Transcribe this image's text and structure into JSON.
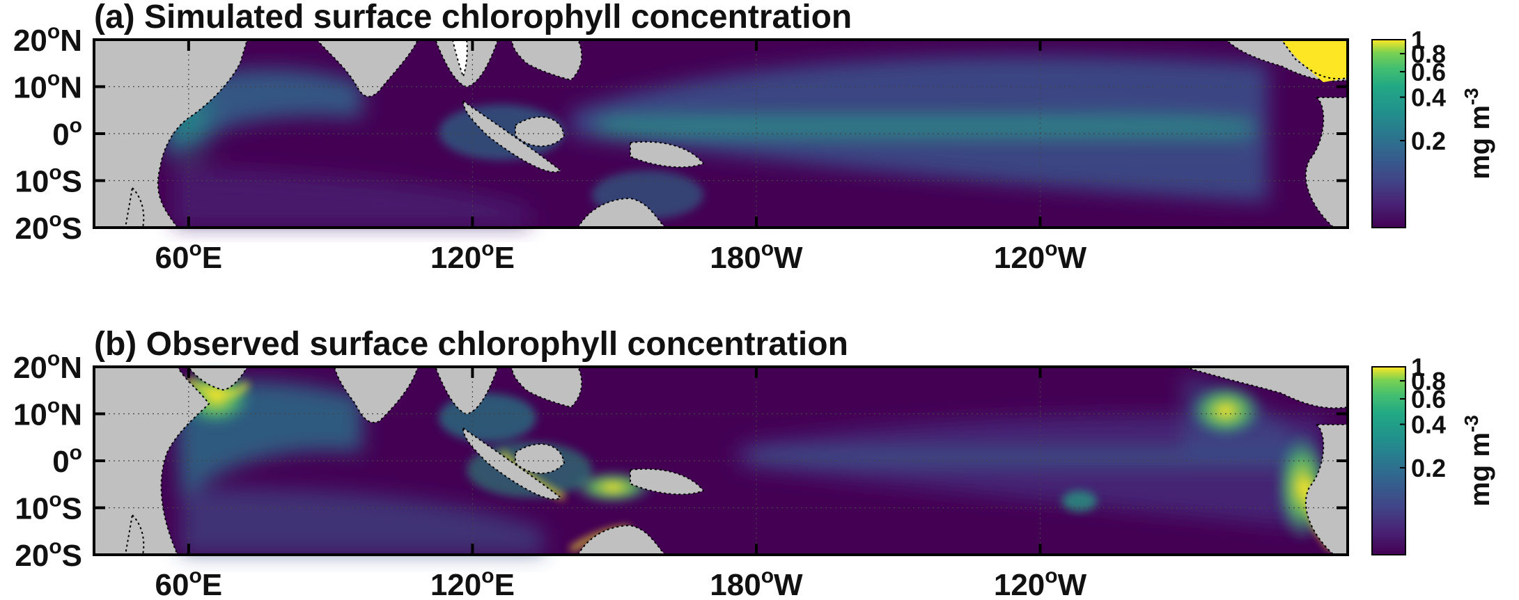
{
  "figure": {
    "colors": {
      "ocean_low": "#440154",
      "ocean_mid": "#21918c",
      "ocean_high": "#fde725",
      "land": "#c0c0c0",
      "coast": "#000000",
      "grid": "#555555"
    }
  },
  "chart_data": [
    {
      "type": "heatmap",
      "panel": "a",
      "title": "(a) Simulated surface chlorophyll concentration",
      "x_ticks": [
        {
          "lon": 60,
          "label": "60",
          "suffix": "E"
        },
        {
          "lon": 120,
          "label": "120",
          "suffix": "E"
        },
        {
          "lon": 180,
          "label": "180",
          "suffix": "W"
        },
        {
          "lon": 240,
          "label": "120",
          "suffix": "W"
        }
      ],
      "y_ticks": [
        {
          "lat": 20,
          "label": "20",
          "suffix": "N"
        },
        {
          "lat": 10,
          "label": "10",
          "suffix": "N"
        },
        {
          "lat": 0,
          "label": "0",
          "suffix": ""
        },
        {
          "lat": -10,
          "label": "10",
          "suffix": "S"
        },
        {
          "lat": -20,
          "label": "20",
          "suffix": "S"
        }
      ],
      "xlim": [
        40,
        305
      ],
      "ylim": [
        -20,
        20
      ],
      "grid": true,
      "colorbar": {
        "ticks": [
          {
            "value": 1,
            "label": "1"
          },
          {
            "value": 0.8,
            "label": "0.8"
          },
          {
            "value": 0.6,
            "label": "0.6"
          },
          {
            "value": 0.4,
            "label": "0.4"
          },
          {
            "value": 0.2,
            "label": "0.2"
          }
        ],
        "range": [
          0.05,
          1
        ],
        "scale": "log",
        "unit": "mg m",
        "unit_exponent": "-3"
      }
    },
    {
      "type": "heatmap",
      "panel": "b",
      "title": "(b) Observed  surface chlorophyll concentration",
      "x_ticks": [
        {
          "lon": 60,
          "label": "60",
          "suffix": "E"
        },
        {
          "lon": 120,
          "label": "120",
          "suffix": "E"
        },
        {
          "lon": 180,
          "label": "180",
          "suffix": "W"
        },
        {
          "lon": 240,
          "label": "120",
          "suffix": "W"
        }
      ],
      "y_ticks": [
        {
          "lat": 20,
          "label": "20",
          "suffix": "N"
        },
        {
          "lat": 10,
          "label": "10",
          "suffix": "N"
        },
        {
          "lat": 0,
          "label": "0",
          "suffix": ""
        },
        {
          "lat": -10,
          "label": "10",
          "suffix": "S"
        },
        {
          "lat": -20,
          "label": "20",
          "suffix": "S"
        }
      ],
      "xlim": [
        40,
        305
      ],
      "ylim": [
        -20,
        20
      ],
      "grid": true,
      "colorbar": {
        "ticks": [
          {
            "value": 1,
            "label": "1"
          },
          {
            "value": 0.8,
            "label": "0.8"
          },
          {
            "value": 0.6,
            "label": "0.6"
          },
          {
            "value": 0.4,
            "label": "0.4"
          },
          {
            "value": 0.2,
            "label": "0.2"
          }
        ],
        "range": [
          0.05,
          1
        ],
        "scale": "log",
        "unit": "mg m",
        "unit_exponent": "-3"
      }
    }
  ]
}
